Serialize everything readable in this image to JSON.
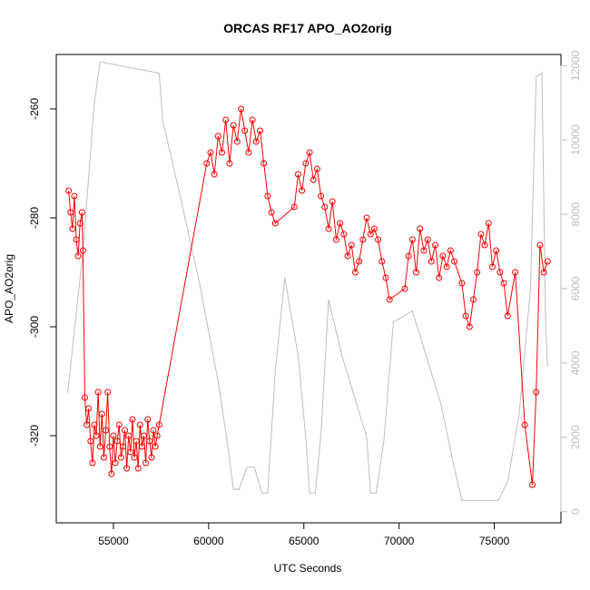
{
  "chart_data": {
    "type": "line",
    "title": "ORCAS RF17 APO_AO2orig",
    "xlabel": "UTC Seconds",
    "ylabel": "APO_AO2orig",
    "xlim": [
      52000,
      78500
    ],
    "ylim": [
      -336,
      -250
    ],
    "x_ticks": [
      55000,
      60000,
      65000,
      70000,
      75000
    ],
    "y_ticks": [
      -320,
      -300,
      -280,
      -260
    ],
    "y2lim": [
      -300,
      12300
    ],
    "y2_ticks": [
      0,
      2000,
      4000,
      6000,
      8000,
      10000,
      12000
    ],
    "colors": {
      "primary": "#ff0000",
      "secondary": "#bebebe"
    },
    "grid": false,
    "series": [
      {
        "axis": "left",
        "color": "#ff0000",
        "style": "line+circle-markers",
        "x": [
          52650,
          52750,
          52850,
          52950,
          53050,
          53150,
          53250,
          53350,
          53400,
          53500,
          53600,
          53700,
          53800,
          53900,
          54000,
          54100,
          54200,
          54300,
          54400,
          54500,
          54600,
          54700,
          54800,
          54900,
          55000,
          55100,
          55200,
          55300,
          55400,
          55500,
          55600,
          55700,
          55800,
          55900,
          56000,
          56100,
          56200,
          56300,
          56400,
          56500,
          56600,
          56700,
          56800,
          56900,
          57000,
          57100,
          57200,
          57300,
          57400,
          59900,
          60100,
          60300,
          60500,
          60700,
          60900,
          61100,
          61300,
          61500,
          61700,
          61900,
          62100,
          62300,
          62500,
          62700,
          62900,
          63100,
          63300,
          63500,
          64500,
          64700,
          64900,
          65100,
          65300,
          65500,
          65700,
          65900,
          66100,
          66300,
          66500,
          66700,
          66900,
          67100,
          67300,
          67500,
          67700,
          67900,
          68100,
          68300,
          68500,
          68700,
          68900,
          69100,
          69300,
          69500,
          70300,
          70500,
          70700,
          70900,
          71100,
          71300,
          71500,
          71700,
          71900,
          72100,
          72300,
          72500,
          72700,
          72900,
          73300,
          73500,
          73700,
          73900,
          74100,
          74300,
          74500,
          74700,
          74900,
          75100,
          75300,
          75500,
          75700,
          76100,
          76600,
          77000,
          77200,
          77400,
          77600,
          77800
        ],
        "y": [
          -275,
          -279,
          -282,
          -276,
          -284,
          -287,
          -281,
          -279,
          -286,
          -313,
          -318,
          -315,
          -321,
          -325,
          -318,
          -320,
          -312,
          -322,
          -316,
          -324,
          -319,
          -312,
          -322,
          -327,
          -320,
          -325,
          -321,
          -318,
          -324,
          -322,
          -319,
          -326,
          -320,
          -323,
          -317,
          -324,
          -321,
          -326,
          -318,
          -322,
          -320,
          -325,
          -317,
          -321,
          -324,
          -319,
          -322,
          -320,
          -318,
          -270,
          -268,
          -272,
          -265,
          -268,
          -262,
          -270,
          -263,
          -266,
          -260,
          -264,
          -268,
          -262,
          -266,
          -264,
          -270,
          -276,
          -279,
          -281,
          -278,
          -272,
          -275,
          -270,
          -268,
          -273,
          -271,
          -276,
          -278,
          -282,
          -277,
          -284,
          -281,
          -283,
          -287,
          -285,
          -290,
          -288,
          -284,
          -280,
          -283,
          -282,
          -284,
          -288,
          -291,
          -295,
          -293,
          -287,
          -284,
          -290,
          -282,
          -286,
          -284,
          -288,
          -285,
          -291,
          -287,
          -289,
          -286,
          -288,
          -292,
          -298,
          -300,
          -295,
          -290,
          -283,
          -285,
          -281,
          -289,
          -286,
          -290,
          -292,
          -298,
          -290,
          -318,
          -329,
          -312,
          -285,
          -290,
          -288
        ]
      },
      {
        "axis": "right",
        "color": "#bebebe",
        "style": "line",
        "x": [
          52600,
          53400,
          54000,
          54300,
          57400,
          57600,
          58500,
          59500,
          60500,
          61000,
          61300,
          61600,
          62000,
          62400,
          62800,
          63100,
          63500,
          64000,
          64700,
          65100,
          65300,
          65600,
          65900,
          66300,
          67000,
          68300,
          68500,
          68800,
          69200,
          69700,
          70700,
          72200,
          72800,
          73300,
          73700,
          74600,
          75200,
          75700,
          76300,
          76900,
          77200,
          77500,
          77700,
          77800
        ],
        "y": [
          3200,
          7000,
          11000,
          12100,
          11800,
          10500,
          8500,
          6200,
          3500,
          1800,
          600,
          600,
          1200,
          1200,
          500,
          500,
          3800,
          6300,
          4200,
          2000,
          500,
          500,
          2100,
          5700,
          4200,
          2000,
          500,
          500,
          1900,
          5100,
          5400,
          2900,
          1400,
          300,
          300,
          300,
          300,
          800,
          2600,
          6000,
          11700,
          11800,
          4900,
          3900
        ]
      }
    ]
  }
}
